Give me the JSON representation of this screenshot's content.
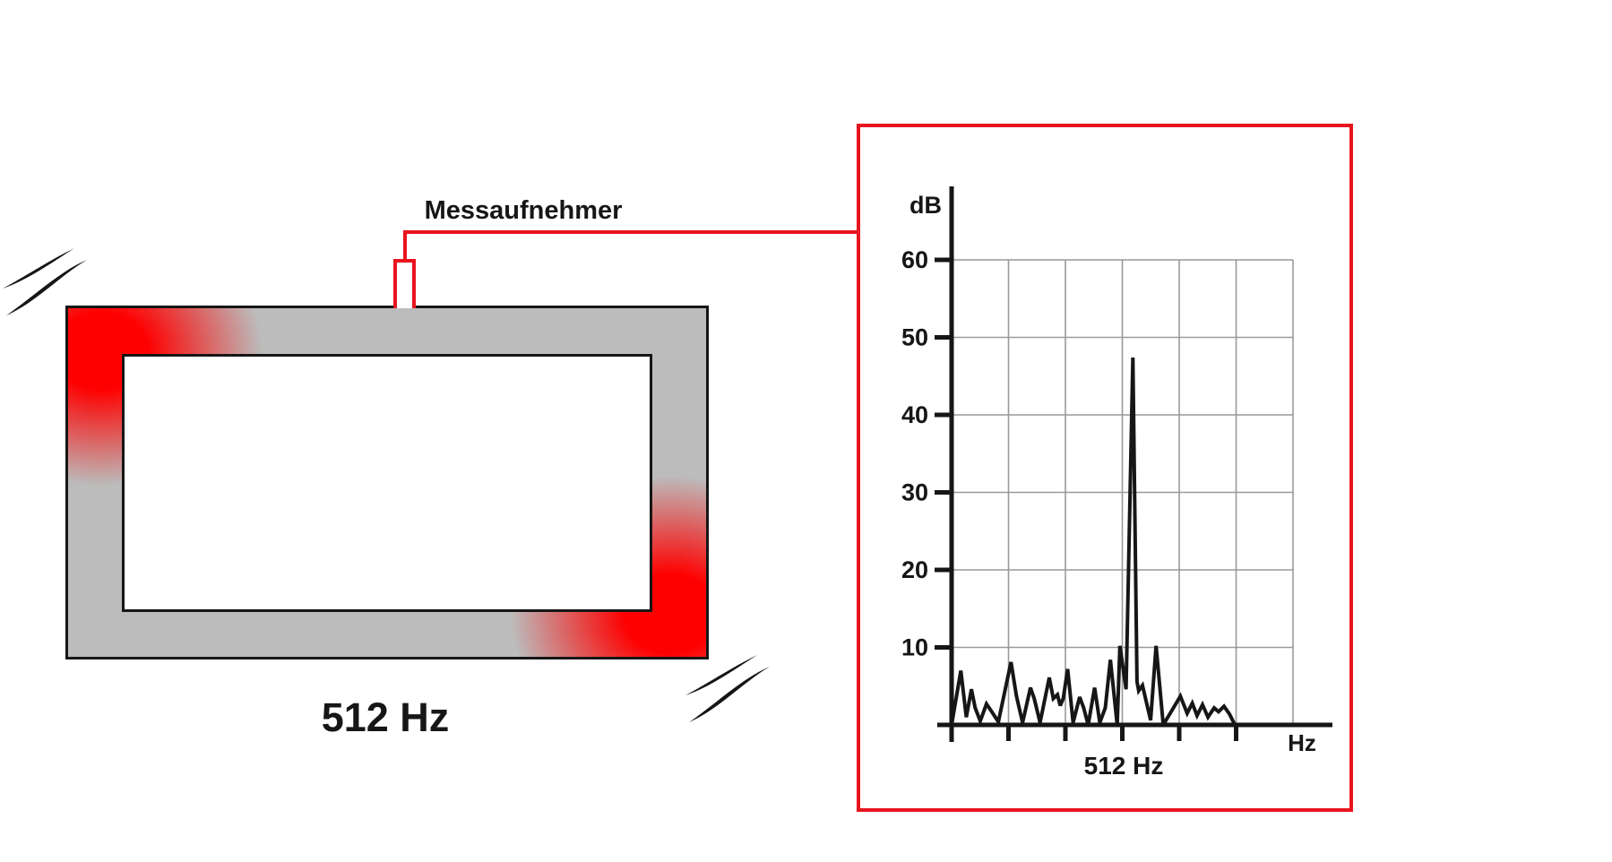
{
  "figure": {
    "labels": {
      "sensor": "Messaufnehmer",
      "excitation_frequency": "512 Hz"
    },
    "icons": {
      "vibration_strokes": "two tapered motion arcs at the upper-left and lower-right frame corners"
    },
    "colors": {
      "red": "#e8141e",
      "glow_red": "#ff0000",
      "frame_gray": "#bcbcbc",
      "line_black": "#161616",
      "grid_gray": "#999999"
    }
  },
  "chart_data": {
    "type": "line",
    "title": "",
    "xlabel": "Hz",
    "ylabel": "dB",
    "y_axis": {
      "ticks": [
        10,
        20,
        30,
        40,
        50,
        60
      ],
      "range": [
        0,
        65
      ],
      "gridlines": true
    },
    "x_axis": {
      "tick_count": 5,
      "gridline_count": 6,
      "labeled_ticks": [],
      "peak_annotation": "512 Hz"
    },
    "peak": {
      "label": "512 Hz",
      "frequency_hz": 512,
      "amplitude_db": 47.4
    },
    "legend": null,
    "series": [
      {
        "name": "measured-spectrum",
        "x_unit": "fraction of visible frequency axis",
        "points": [
          [
            0.0,
            0.0
          ],
          [
            0.027,
            7.0
          ],
          [
            0.043,
            1.0
          ],
          [
            0.058,
            4.6
          ],
          [
            0.069,
            2.2
          ],
          [
            0.084,
            0.5
          ],
          [
            0.102,
            2.7
          ],
          [
            0.113,
            2.0
          ],
          [
            0.137,
            0.4
          ],
          [
            0.174,
            8.1
          ],
          [
            0.19,
            3.7
          ],
          [
            0.208,
            0.3
          ],
          [
            0.231,
            4.8
          ],
          [
            0.242,
            3.4
          ],
          [
            0.259,
            0.3
          ],
          [
            0.286,
            6.1
          ],
          [
            0.298,
            3.4
          ],
          [
            0.31,
            3.9
          ],
          [
            0.318,
            2.5
          ],
          [
            0.327,
            3.4
          ],
          [
            0.34,
            7.2
          ],
          [
            0.356,
            0.3
          ],
          [
            0.375,
            3.6
          ],
          [
            0.387,
            2.2
          ],
          [
            0.4,
            0.0
          ],
          [
            0.419,
            4.8
          ],
          [
            0.434,
            0.3
          ],
          [
            0.45,
            2.2
          ],
          [
            0.465,
            8.4
          ],
          [
            0.485,
            0.0
          ],
          [
            0.493,
            10.2
          ],
          [
            0.511,
            4.6
          ],
          [
            0.531,
            47.4
          ],
          [
            0.543,
            5.6
          ],
          [
            0.548,
            4.4
          ],
          [
            0.559,
            5.1
          ],
          [
            0.583,
            0.6
          ],
          [
            0.599,
            10.2
          ],
          [
            0.62,
            0.0
          ],
          [
            0.67,
            3.7
          ],
          [
            0.69,
            1.5
          ],
          [
            0.705,
            2.8
          ],
          [
            0.719,
            1.2
          ],
          [
            0.735,
            2.6
          ],
          [
            0.751,
            1.0
          ],
          [
            0.769,
            2.2
          ],
          [
            0.782,
            1.7
          ],
          [
            0.798,
            2.4
          ],
          [
            0.814,
            1.4
          ],
          [
            0.83,
            0.0
          ]
        ]
      }
    ]
  }
}
